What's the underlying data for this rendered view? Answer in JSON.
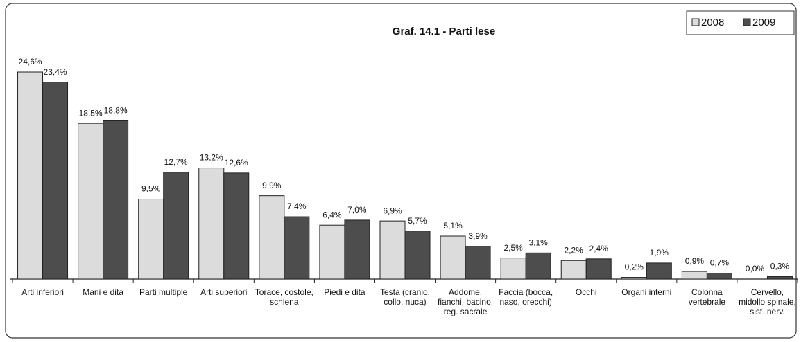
{
  "chart_data": {
    "type": "bar",
    "title": "Graf. 14.1 - Parti lese",
    "categories": [
      "Arti inferiori",
      "Mani e dita",
      "Parti multiple",
      "Arti superiori",
      "Torace, costole, schiena",
      "Piedi e dita",
      "Testa (cranio, collo, nuca)",
      "Addome, fianchi, bacino, reg. sacrale",
      "Faccia (bocca, naso, orecchi)",
      "Occhi",
      "Organi interni",
      "Colonna vertebrale",
      "Cervello, midollo spinale, sist. nerv."
    ],
    "series": [
      {
        "name": "2008",
        "color": "#dcdcdc",
        "values": [
          24.6,
          18.5,
          9.5,
          13.2,
          9.9,
          6.4,
          6.9,
          5.1,
          2.5,
          2.2,
          0.2,
          0.9,
          0.0
        ],
        "value_labels": [
          "24,6%",
          "18,5%",
          "9,5%",
          "13,2%",
          "9,9%",
          "6,4%",
          "6,9%",
          "5,1%",
          "2,5%",
          "2,2%",
          "0,2%",
          "0,9%",
          "0,0%"
        ]
      },
      {
        "name": "2009",
        "color": "#4d4d4d",
        "values": [
          23.4,
          18.8,
          12.7,
          12.6,
          7.4,
          7.0,
          5.7,
          3.9,
          3.1,
          2.4,
          1.9,
          0.7,
          0.3
        ],
        "value_labels": [
          "23,4%",
          "18,8%",
          "12,7%",
          "12,6%",
          "7,4%",
          "7,0%",
          "5,7%",
          "3,9%",
          "3,1%",
          "2,4%",
          "1,9%",
          "0,7%",
          "0,3%"
        ]
      }
    ],
    "legend": "top-right"
  }
}
